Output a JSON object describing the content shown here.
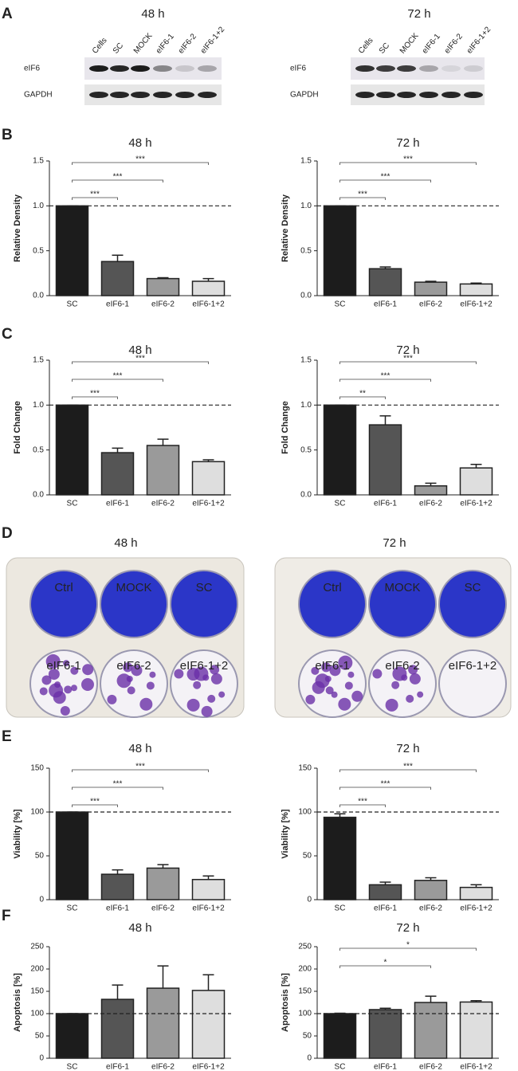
{
  "panel_letters": [
    "A",
    "B",
    "C",
    "D",
    "E",
    "F"
  ],
  "blots": {
    "titles": [
      "48 h",
      "72 h"
    ],
    "lanes": [
      "Cells",
      "SC",
      "MOCK",
      "eIF6-1",
      "eIF6-2",
      "eIF6-1+2"
    ],
    "rows": [
      "eIF6",
      "GAPDH"
    ]
  },
  "plates": {
    "titles": [
      "48 h",
      "72 h"
    ],
    "wells": [
      "Ctrl",
      "MOCK",
      "SC",
      "eIF6-1",
      "eIF6-2",
      "eIF6-1+2"
    ]
  },
  "chart_data": [
    {
      "type": "bar",
      "title": "48 h",
      "y_label": "Relative Density",
      "categories": [
        "SC",
        "eIF6-1",
        "eIF6-2",
        "eIF6-1+2"
      ],
      "colors": [
        "#1c1c1c",
        "#555555",
        "#9a9a9a",
        "#dedede"
      ],
      "values": [
        1.0,
        0.38,
        0.19,
        0.16
      ],
      "errors": [
        0,
        0.07,
        0.01,
        0.03
      ],
      "ylim": [
        0,
        1.5
      ],
      "yticks": [
        {
          "value": 0,
          "label": "0.0"
        },
        {
          "value": 0.5,
          "label": "0.5"
        },
        {
          "value": 1,
          "label": "1.0"
        },
        {
          "value": 1.5,
          "label": "1.5"
        }
      ],
      "reference_line": 1,
      "significance": [
        {
          "to": "eIF6-1+2",
          "label": "***"
        },
        {
          "to": "eIF6-2",
          "label": "***"
        },
        {
          "to": "eIF6-1",
          "label": "***"
        }
      ]
    },
    {
      "type": "bar",
      "title": "72 h",
      "y_label": "Relative Density",
      "categories": [
        "SC",
        "eIF6-1",
        "eIF6-2",
        "eIF6-1+2"
      ],
      "colors": [
        "#1c1c1c",
        "#555555",
        "#9a9a9a",
        "#dedede"
      ],
      "values": [
        1.0,
        0.3,
        0.15,
        0.13
      ],
      "errors": [
        0,
        0.02,
        0.01,
        0.01
      ],
      "ylim": [
        0,
        1.5
      ],
      "yticks": [
        {
          "value": 0,
          "label": "0.0"
        },
        {
          "value": 0.5,
          "label": "0.5"
        },
        {
          "value": 1,
          "label": "1.0"
        },
        {
          "value": 1.5,
          "label": "1.5"
        }
      ],
      "reference_line": 1,
      "significance": [
        {
          "to": "eIF6-1+2",
          "label": "***"
        },
        {
          "to": "eIF6-2",
          "label": "***"
        },
        {
          "to": "eIF6-1",
          "label": "***"
        }
      ]
    },
    {
      "type": "bar",
      "title": "48 h",
      "y_label": "Fold Change",
      "categories": [
        "SC",
        "eIF6-1",
        "eIF6-2",
        "eIF6-1+2"
      ],
      "colors": [
        "#1c1c1c",
        "#555555",
        "#9a9a9a",
        "#dedede"
      ],
      "values": [
        1.0,
        0.47,
        0.55,
        0.37
      ],
      "errors": [
        0,
        0.05,
        0.07,
        0.02
      ],
      "ylim": [
        0,
        1.5
      ],
      "yticks": [
        {
          "value": 0,
          "label": "0.0"
        },
        {
          "value": 0.5,
          "label": "0.5"
        },
        {
          "value": 1,
          "label": "1.0"
        },
        {
          "value": 1.5,
          "label": "1.5"
        }
      ],
      "reference_line": 1,
      "significance": [
        {
          "to": "eIF6-1+2",
          "label": "***"
        },
        {
          "to": "eIF6-2",
          "label": "***"
        },
        {
          "to": "eIF6-1",
          "label": "***"
        }
      ]
    },
    {
      "type": "bar",
      "title": "72 h",
      "y_label": "Fold Change",
      "categories": [
        "SC",
        "eIF6-1",
        "eIF6-2",
        "eIF6-1+2"
      ],
      "colors": [
        "#1c1c1c",
        "#555555",
        "#9a9a9a",
        "#dedede"
      ],
      "values": [
        1.0,
        0.78,
        0.1,
        0.3
      ],
      "errors": [
        0,
        0.1,
        0.03,
        0.04
      ],
      "ylim": [
        0,
        1.5
      ],
      "yticks": [
        {
          "value": 0,
          "label": "0.0"
        },
        {
          "value": 0.5,
          "label": "0.5"
        },
        {
          "value": 1,
          "label": "1.0"
        },
        {
          "value": 1.5,
          "label": "1.5"
        }
      ],
      "reference_line": 1,
      "significance": [
        {
          "to": "eIF6-1+2",
          "label": "***"
        },
        {
          "to": "eIF6-2",
          "label": "***"
        },
        {
          "to": "eIF6-1",
          "label": "**"
        }
      ]
    },
    {
      "type": "bar",
      "title": "48 h",
      "y_label": "Viability [%]",
      "categories": [
        "SC",
        "eIF6-1",
        "eIF6-2",
        "eIF6-1+2"
      ],
      "colors": [
        "#1c1c1c",
        "#555555",
        "#9a9a9a",
        "#dedede"
      ],
      "values": [
        100,
        29,
        36,
        23
      ],
      "errors": [
        0,
        5,
        4,
        4
      ],
      "ylim": [
        0,
        150
      ],
      "yticks": [
        0,
        50,
        100,
        150
      ],
      "reference_line": 100,
      "significance": [
        {
          "to": "eIF6-1+2",
          "label": "***"
        },
        {
          "to": "eIF6-2",
          "label": "***"
        },
        {
          "to": "eIF6-1",
          "label": "***"
        }
      ]
    },
    {
      "type": "bar",
      "title": "72 h",
      "y_label": "Viability [%]",
      "categories": [
        "SC",
        "eIF6-1",
        "eIF6-2",
        "eIF6-1+2"
      ],
      "colors": [
        "#1c1c1c",
        "#555555",
        "#9a9a9a",
        "#dedede"
      ],
      "values": [
        94,
        17,
        22,
        14
      ],
      "errors": [
        4,
        3,
        3,
        3
      ],
      "ylim": [
        0,
        150
      ],
      "yticks": [
        0,
        50,
        100,
        150
      ],
      "reference_line": 100,
      "significance": [
        {
          "to": "eIF6-1+2",
          "label": "***"
        },
        {
          "to": "eIF6-2",
          "label": "***"
        },
        {
          "to": "eIF6-1",
          "label": "***"
        }
      ]
    },
    {
      "type": "bar",
      "title": "48 h",
      "y_label": "Apoptosis [%]",
      "categories": [
        "SC",
        "eIF6-1",
        "eIF6-2",
        "eIF6-1+2"
      ],
      "colors": [
        "#1c1c1c",
        "#555555",
        "#9a9a9a",
        "#dedede"
      ],
      "values": [
        100,
        132,
        157,
        152
      ],
      "errors": [
        0,
        32,
        50,
        35
      ],
      "ylim": [
        0,
        250
      ],
      "yticks": [
        0,
        50,
        100,
        150,
        200,
        250
      ],
      "reference_line": 100,
      "significance": []
    },
    {
      "type": "bar",
      "title": "72 h",
      "y_label": "Apoptosis [%]",
      "categories": [
        "SC",
        "eIF6-1",
        "eIF6-2",
        "eIF6-1+2"
      ],
      "colors": [
        "#1c1c1c",
        "#555555",
        "#9a9a9a",
        "#dedede"
      ],
      "values": [
        100,
        109,
        125,
        126
      ],
      "errors": [
        1,
        3,
        14,
        3
      ],
      "ylim": [
        0,
        250
      ],
      "yticks": [
        0,
        50,
        100,
        150,
        200,
        250
      ],
      "reference_line": 100,
      "significance": [
        {
          "to": "eIF6-1+2",
          "label": "*"
        },
        {
          "to": "eIF6-2",
          "label": "*"
        }
      ]
    }
  ]
}
